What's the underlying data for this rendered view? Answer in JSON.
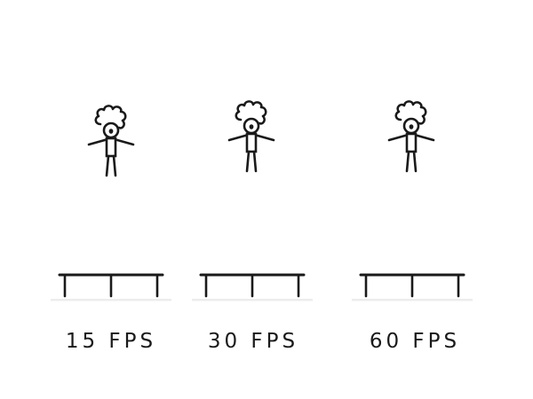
{
  "panels": [
    {
      "id": "15",
      "label": "15 FPS"
    },
    {
      "id": "30",
      "label": "30 FPS"
    },
    {
      "id": "60",
      "label": "60 FPS"
    }
  ],
  "colors": {
    "stroke": "#1a1a1a",
    "shadow": "#ececec",
    "background": "#ffffff"
  },
  "icons": {
    "figure": "stick-figure-icon",
    "trampoline": "trampoline-icon"
  }
}
